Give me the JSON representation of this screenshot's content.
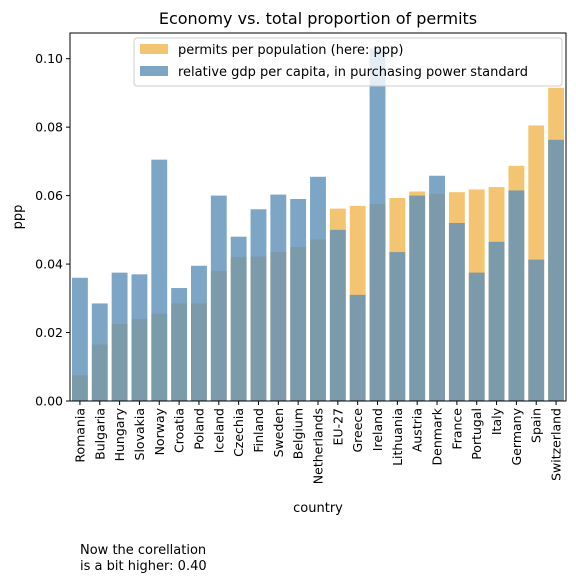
{
  "chart_data": {
    "type": "bar",
    "title": "Economy vs. total proportion of permits",
    "xlabel": "country",
    "ylabel": "ppp",
    "ylim": [
      0,
      0.1075
    ],
    "yticks": [
      0.0,
      0.02,
      0.04,
      0.06,
      0.08,
      0.1
    ],
    "categories": [
      "Romania",
      "Bulgaria",
      "Hungary",
      "Slovakia",
      "Norway",
      "Croatia",
      "Poland",
      "Iceland",
      "Czechia",
      "Finland",
      "Sweden",
      "Belgium",
      "Netherlands",
      "EU-27",
      "Greece",
      "Ireland",
      "Lithuania",
      "Austria",
      "Denmark",
      "France",
      "Portugal",
      "Italy",
      "Germany",
      "Spain",
      "Switzerland"
    ],
    "series": [
      {
        "name": "permits per population (here: ppp)",
        "color": "#f0b74f",
        "values": [
          0.0075,
          0.0165,
          0.0225,
          0.024,
          0.0255,
          0.0285,
          0.0285,
          0.038,
          0.042,
          0.0422,
          0.0435,
          0.045,
          0.0472,
          0.0562,
          0.057,
          0.0575,
          0.0593,
          0.0612,
          0.0605,
          0.061,
          0.0618,
          0.0625,
          0.0687,
          0.0805,
          0.0915
        ]
      },
      {
        "name": "relative gdp per capita, in purchasing power standard",
        "color": "#5d8fb8",
        "values": [
          0.036,
          0.0285,
          0.0375,
          0.037,
          0.0705,
          0.033,
          0.0395,
          0.06,
          0.048,
          0.056,
          0.0603,
          0.059,
          0.0655,
          0.05,
          0.031,
          0.103,
          0.0435,
          0.06,
          0.0658,
          0.052,
          0.0375,
          0.0465,
          0.0615,
          0.0413,
          0.0763
        ]
      }
    ],
    "legend_position": "top-center",
    "grid": false
  },
  "annotation": {
    "text": "Now the corellation\nis a bit higher: 0.40"
  }
}
